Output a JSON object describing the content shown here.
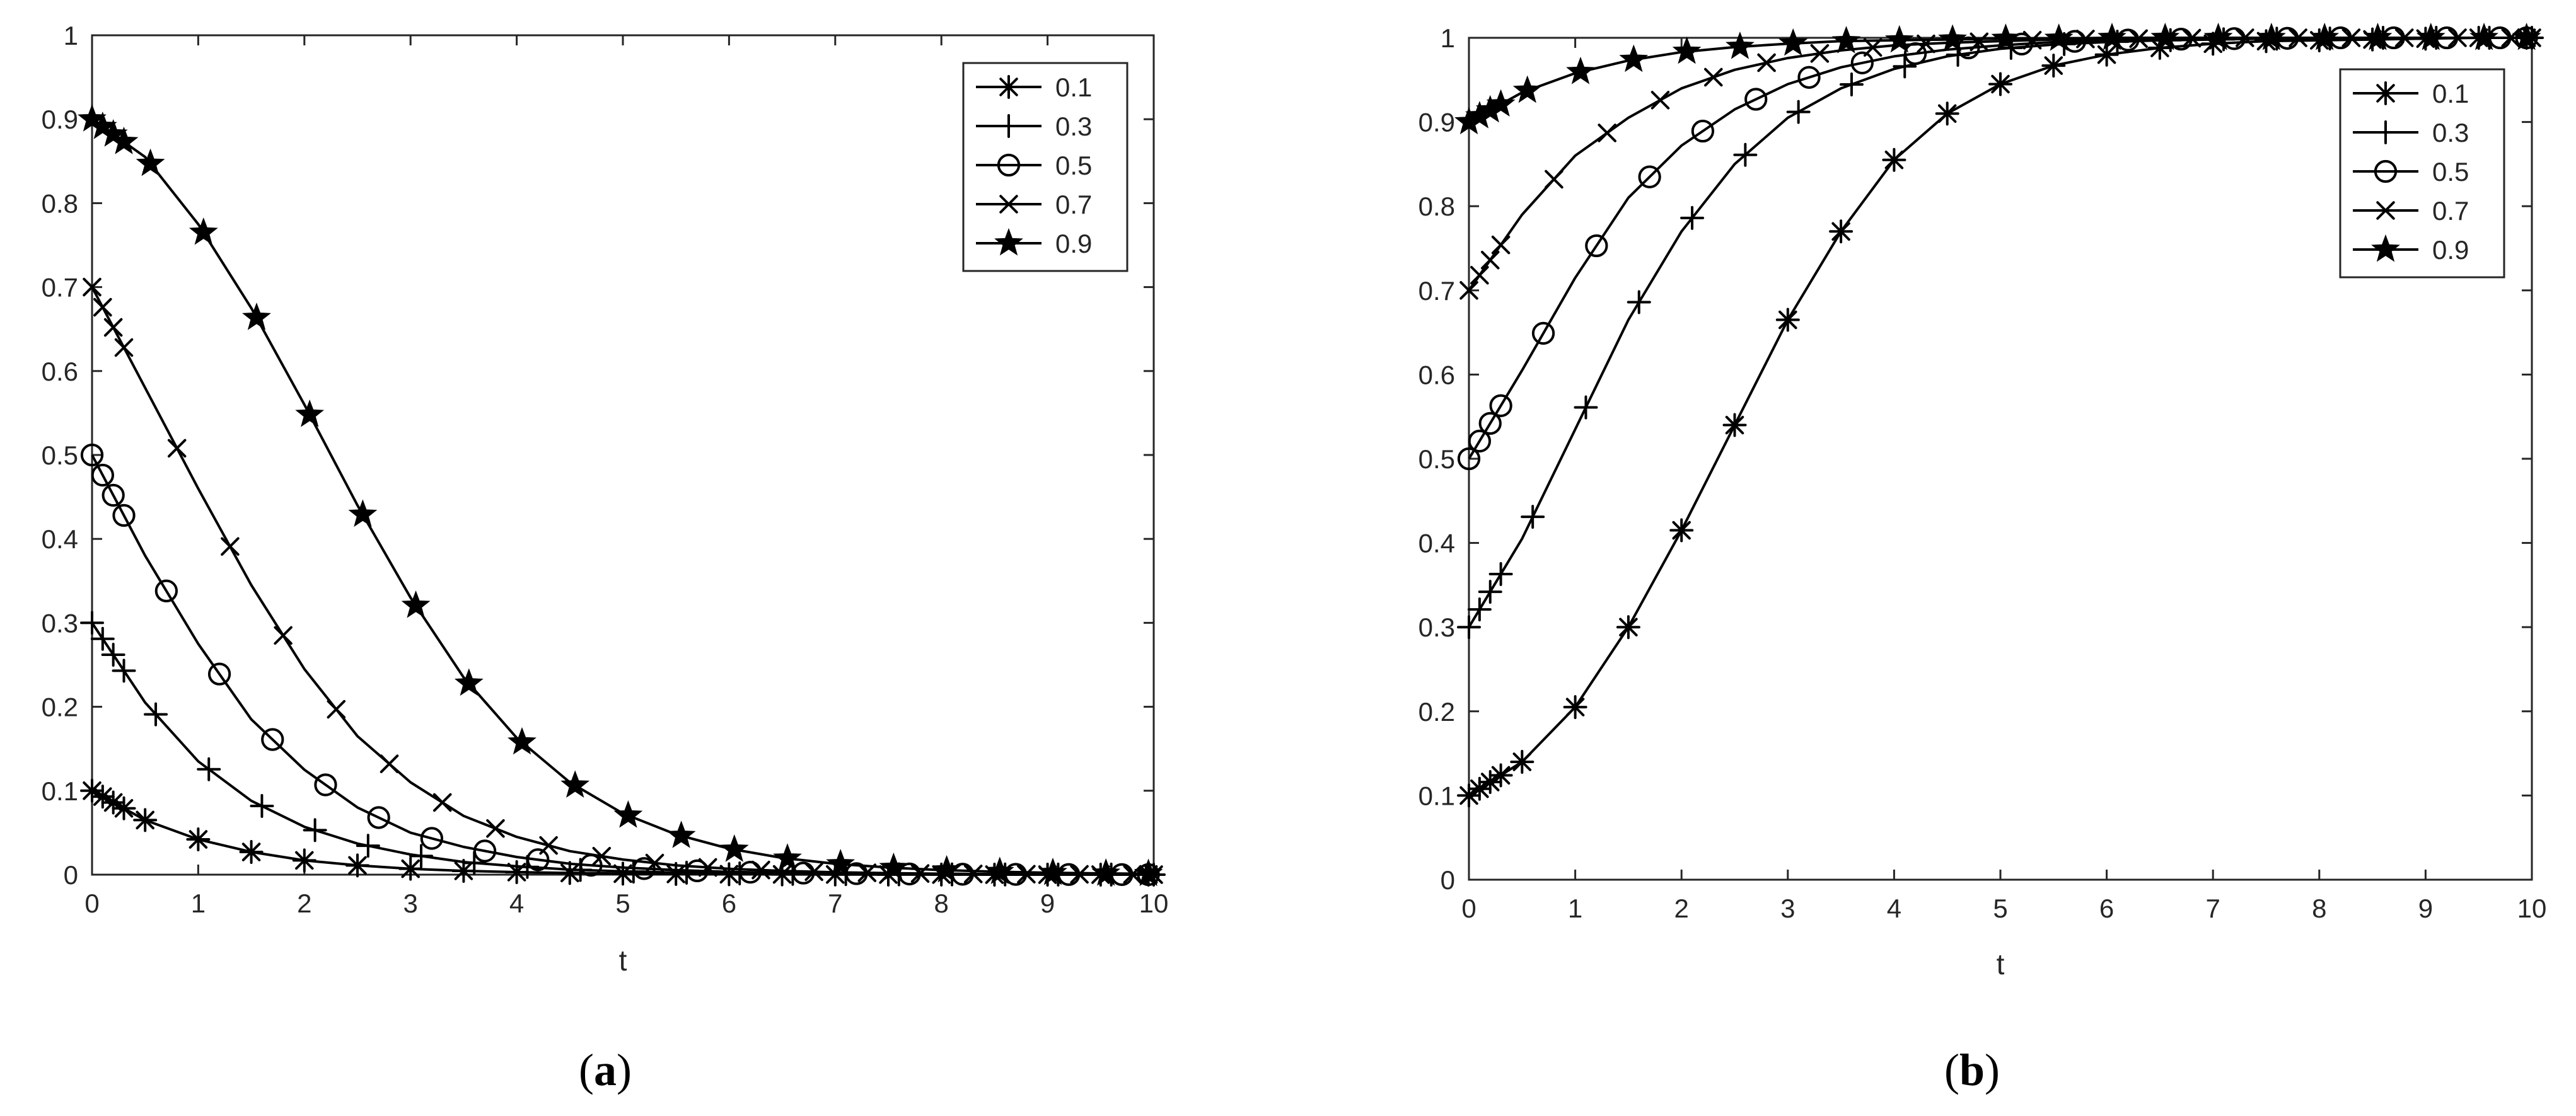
{
  "colors": {
    "line": "#000000",
    "axis": "#262626",
    "background": "#ffffff"
  },
  "chart_data": [
    {
      "type": "line",
      "panel": "a",
      "caption": {
        "open": "(",
        "letter": "a",
        "close": ")"
      },
      "xlabel": "t",
      "ylabel": "",
      "xlim": [
        0,
        10
      ],
      "ylim": [
        0,
        1
      ],
      "x_ticks": [
        "0",
        "1",
        "2",
        "3",
        "4",
        "5",
        "6",
        "7",
        "8",
        "9",
        "10"
      ],
      "y_ticks": [
        "0",
        "0.1",
        "0.2",
        "0.3",
        "0.4",
        "0.5",
        "0.6",
        "0.7",
        "0.8",
        "0.9",
        "1"
      ],
      "grid": false,
      "legend_position": "top-right",
      "x": [
        0,
        0.5,
        1,
        1.5,
        2,
        2.5,
        3,
        3.5,
        4,
        4.5,
        5,
        5.5,
        6,
        6.5,
        7,
        7.5,
        8,
        8.5,
        9,
        9.5,
        10
      ],
      "series": [
        {
          "name": "0.1",
          "marker": "asterisk",
          "values": [
            0.1,
            0.065,
            0.042,
            0.027,
            0.017,
            0.011,
            0.007,
            0.0045,
            0.003,
            0.002,
            0.0012,
            0.0008,
            0.0005,
            0.0003,
            0.0002,
            0.0001,
            0.0001,
            0,
            0,
            0,
            0
          ]
        },
        {
          "name": "0.3",
          "marker": "plus",
          "values": [
            0.3,
            0.205,
            0.135,
            0.088,
            0.057,
            0.037,
            0.024,
            0.015,
            0.01,
            0.006,
            0.004,
            0.0025,
            0.0016,
            0.001,
            0.0007,
            0.0004,
            0.0003,
            0.0002,
            0.0001,
            0.0001,
            0
          ]
        },
        {
          "name": "0.5",
          "marker": "circle",
          "values": [
            0.5,
            0.38,
            0.275,
            0.185,
            0.125,
            0.08,
            0.05,
            0.033,
            0.021,
            0.013,
            0.0085,
            0.0054,
            0.0034,
            0.0022,
            0.0014,
            0.0009,
            0.0006,
            0.0004,
            0.0002,
            0.0001,
            0.0001
          ]
        },
        {
          "name": "0.7",
          "marker": "cross",
          "values": [
            0.7,
            0.58,
            0.46,
            0.345,
            0.245,
            0.165,
            0.11,
            0.07,
            0.045,
            0.028,
            0.018,
            0.011,
            0.007,
            0.0045,
            0.0028,
            0.0018,
            0.0011,
            0.0007,
            0.0005,
            0.0003,
            0.0002
          ]
        },
        {
          "name": "0.9",
          "marker": "star",
          "values": [
            0.9,
            0.855,
            0.775,
            0.675,
            0.56,
            0.44,
            0.33,
            0.235,
            0.163,
            0.11,
            0.073,
            0.048,
            0.031,
            0.02,
            0.013,
            0.0085,
            0.0055,
            0.0035,
            0.0023,
            0.0015,
            0.001
          ]
        }
      ]
    },
    {
      "type": "line",
      "panel": "b",
      "caption": {
        "open": "(",
        "letter": "b",
        "close": ")"
      },
      "xlabel": "t",
      "ylabel": "",
      "xlim": [
        0,
        10
      ],
      "ylim": [
        0,
        1
      ],
      "x_ticks": [
        "0",
        "1",
        "2",
        "3",
        "4",
        "5",
        "6",
        "7",
        "8",
        "9",
        "10"
      ],
      "y_ticks": [
        "0",
        "0.1",
        "0.2",
        "0.3",
        "0.4",
        "0.5",
        "0.6",
        "0.7",
        "0.8",
        "0.9",
        "1"
      ],
      "grid": false,
      "legend_position": "top-right",
      "x": [
        0,
        0.5,
        1,
        1.5,
        2,
        2.5,
        3,
        3.5,
        4,
        4.5,
        5,
        5.5,
        6,
        6.5,
        7,
        7.5,
        8,
        8.5,
        9,
        9.5,
        10
      ],
      "series": [
        {
          "name": "0.1",
          "marker": "asterisk",
          "values": [
            0.1,
            0.14,
            0.205,
            0.3,
            0.415,
            0.54,
            0.665,
            0.77,
            0.855,
            0.91,
            0.945,
            0.967,
            0.98,
            0.988,
            0.993,
            0.996,
            0.997,
            0.998,
            0.999,
            1.0,
            1.0
          ]
        },
        {
          "name": "0.3",
          "marker": "plus",
          "values": [
            0.3,
            0.405,
            0.535,
            0.665,
            0.77,
            0.85,
            0.905,
            0.94,
            0.963,
            0.978,
            0.987,
            0.992,
            0.995,
            0.997,
            0.998,
            0.999,
            0.999,
            1.0,
            1.0,
            1.0,
            1.0
          ]
        },
        {
          "name": "0.5",
          "marker": "circle",
          "values": [
            0.5,
            0.605,
            0.715,
            0.81,
            0.872,
            0.915,
            0.945,
            0.965,
            0.978,
            0.986,
            0.991,
            0.995,
            0.997,
            0.998,
            0.999,
            0.999,
            1.0,
            1.0,
            1.0,
            1.0,
            1.0
          ]
        },
        {
          "name": "0.7",
          "marker": "cross",
          "values": [
            0.7,
            0.79,
            0.86,
            0.905,
            0.94,
            0.962,
            0.976,
            0.985,
            0.991,
            0.994,
            0.996,
            0.998,
            0.999,
            0.999,
            1.0,
            1.0,
            1.0,
            1.0,
            1.0,
            1.0,
            1.0
          ]
        },
        {
          "name": "0.9",
          "marker": "star",
          "values": [
            0.9,
            0.935,
            0.958,
            0.973,
            0.983,
            0.989,
            0.993,
            0.996,
            0.997,
            0.998,
            0.999,
            0.999,
            1.0,
            1.0,
            1.0,
            1.0,
            1.0,
            1.0,
            1.0,
            1.0,
            1.0
          ]
        }
      ]
    }
  ]
}
